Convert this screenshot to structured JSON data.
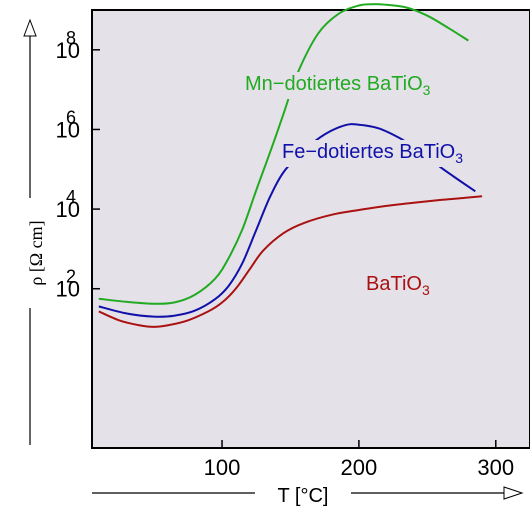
{
  "chart_data": {
    "type": "line",
    "title": "",
    "xlabel": "T [°C]",
    "ylabel": "ρ [Ω cm]",
    "yscale": "log",
    "xlim": [
      5,
      325
    ],
    "ylim": [
      0.01,
      1000000000
    ],
    "grid": false,
    "x_ticks": [
      {
        "value": 100,
        "label": "100"
      },
      {
        "value": 200,
        "label": "200"
      },
      {
        "value": 300,
        "label": "300"
      }
    ],
    "y_ticks": [
      {
        "value": 100,
        "base": "10",
        "exp": "2"
      },
      {
        "value": 10000,
        "base": "10",
        "exp": "4"
      },
      {
        "value": 1000000,
        "base": "10",
        "exp": "6"
      },
      {
        "value": 100000000,
        "base": "10",
        "exp": "8"
      }
    ],
    "series": [
      {
        "name": "Mn–dotiertes BaTiO3",
        "color": "#22aa22",
        "x": [
          10,
          30,
          50,
          65,
          80,
          95,
          105,
          115,
          125,
          135,
          145,
          155,
          170,
          185,
          200,
          210,
          220,
          235,
          250,
          265,
          280
        ],
        "y": [
          56,
          47,
          42,
          45,
          70,
          180,
          600,
          3200,
          30000,
          260000,
          2500000,
          25000000,
          250000000,
          800000000,
          1300000000,
          1400000000,
          1350000000,
          1150000000,
          720000000,
          360000000,
          170000000
        ]
      },
      {
        "name": "Fe–dotiertes BaTiO3",
        "color": "#1111aa",
        "x": [
          10,
          30,
          50,
          65,
          80,
          95,
          105,
          115,
          125,
          135,
          145,
          160,
          175,
          190,
          200,
          215,
          230,
          245,
          260,
          275,
          285
        ],
        "y": [
          36,
          24,
          20,
          21,
          28,
          55,
          120,
          450,
          3000,
          20000,
          85000,
          300000,
          750000,
          1280000,
          1320000,
          1050000,
          600000,
          280000,
          110000,
          48000,
          28000
        ]
      },
      {
        "name": "BaTiO3",
        "color": "#aa1111",
        "x": [
          10,
          25,
          40,
          50,
          60,
          75,
          90,
          100,
          110,
          120,
          130,
          145,
          160,
          180,
          200,
          220,
          240,
          260,
          280,
          290
        ],
        "y": [
          27,
          16,
          12,
          11,
          12,
          16,
          27,
          45,
          100,
          300,
          900,
          2500,
          4500,
          7200,
          9500,
          12000,
          14500,
          17000,
          19500,
          21000
        ]
      }
    ],
    "annotations": [
      {
        "series": "Mn–dotiertes BaTiO3",
        "text": "Mn−dotiertes BaTiO",
        "sub": "3"
      },
      {
        "series": "Fe–dotiertes BaTiO3",
        "text": "Fe−dotiertes BaTiO",
        "sub": "3"
      },
      {
        "series": "BaTiO3",
        "text": "BaTiO",
        "sub": "3"
      }
    ]
  }
}
